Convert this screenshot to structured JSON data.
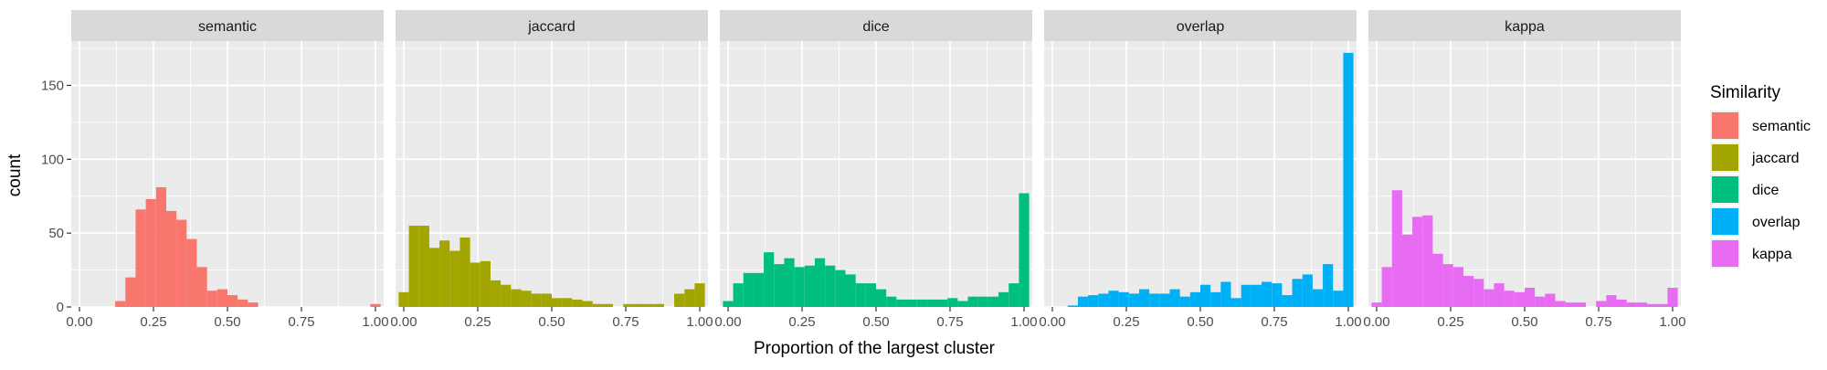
{
  "chart_data": {
    "type": "bar",
    "subtype": "faceted-histogram",
    "xlabel": "Proportion of the largest cluster",
    "ylabel": "count",
    "xlim": [
      0,
      1
    ],
    "ylim": [
      0,
      175
    ],
    "x_ticks": [
      "0.00",
      "0.25",
      "0.50",
      "0.75",
      "1.00"
    ],
    "x_tick_values": [
      0,
      0.25,
      0.5,
      0.75,
      1
    ],
    "y_ticks": [
      "0",
      "50",
      "100",
      "150"
    ],
    "y_tick_values": [
      0,
      50,
      100,
      150
    ],
    "grid": true,
    "legend": {
      "title": "Similarity",
      "placement": "right"
    },
    "bins": {
      "x": [
        0.0,
        0.0345,
        0.069,
        0.1034,
        0.1379,
        0.1724,
        0.2069,
        0.2414,
        0.2759,
        0.3103,
        0.3448,
        0.3793,
        0.4138,
        0.4483,
        0.4828,
        0.5172,
        0.5517,
        0.5862,
        0.6207,
        0.6552,
        0.6897,
        0.7241,
        0.7586,
        0.7931,
        0.8276,
        0.8621,
        0.8966,
        0.931,
        0.9655,
        1.0
      ]
    },
    "series": [
      {
        "name": "semantic",
        "color": "#F8766D",
        "values": [
          0,
          0,
          0,
          0,
          4,
          20,
          66,
          73,
          81,
          65,
          59,
          46,
          27,
          11,
          12,
          8,
          5,
          3,
          0,
          0,
          0,
          0,
          0,
          0,
          0,
          0,
          0,
          0,
          0,
          2
        ]
      },
      {
        "name": "jaccard",
        "color": "#A3A500",
        "values": [
          10,
          55,
          55,
          40,
          45,
          38,
          47,
          30,
          31,
          18,
          15,
          12,
          11,
          9,
          9,
          6,
          6,
          5,
          4,
          2,
          2,
          0,
          2,
          2,
          2,
          2,
          0,
          9,
          12,
          16
        ]
      },
      {
        "name": "dice",
        "color": "#00BF7D",
        "values": [
          4,
          16,
          23,
          23,
          37,
          29,
          33,
          27,
          28,
          33,
          28,
          25,
          22,
          16,
          16,
          12,
          7,
          5,
          5,
          5,
          5,
          5,
          6,
          4,
          7,
          7,
          7,
          10,
          16,
          77
        ]
      },
      {
        "name": "overlap",
        "color": "#00B0F6",
        "values": [
          0,
          0,
          1,
          7,
          8,
          9,
          11,
          10,
          9,
          12,
          9,
          9,
          12,
          7,
          10,
          15,
          10,
          17,
          6,
          15,
          15,
          17,
          16,
          8,
          19,
          22,
          12,
          29,
          11,
          172
        ]
      },
      {
        "name": "kappa",
        "color": "#E76BF3",
        "values": [
          3,
          27,
          79,
          49,
          61,
          62,
          36,
          29,
          27,
          21,
          19,
          12,
          16,
          11,
          10,
          13,
          7,
          9,
          4,
          3,
          3,
          0,
          4,
          8,
          5,
          3,
          3,
          2,
          2,
          13
        ]
      }
    ]
  }
}
